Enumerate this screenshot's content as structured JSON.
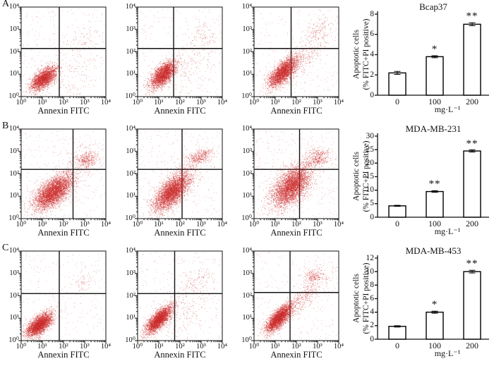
{
  "figure": {
    "scatter_xlabel": "Annexin FITC",
    "dose_unit": "mg·L⁻¹",
    "bar_ylabel_line1": "Apoptotic cells",
    "bar_ylabel_line2": "(% FITC+PI positive)",
    "dot_color": "#cc2a2a",
    "axis_color": "#111111",
    "rows": [
      {
        "label": "A",
        "cell_line": "Bcap37"
      },
      {
        "label": "B",
        "cell_line": "MDA-MB-231"
      },
      {
        "label": "C",
        "cell_line": "MDA-MB-453"
      }
    ]
  },
  "chart_data": [
    {
      "type": "scatter",
      "panel": "A1",
      "xlabel": "Annexin FITC",
      "xlim": [
        1,
        10000
      ],
      "ylim": [
        1,
        10000
      ],
      "log": true,
      "ticks": [
        "10⁰",
        "10¹",
        "10²",
        "10³",
        "10⁴"
      ],
      "quadrant_x": 1.8,
      "quadrant_y": 2.15,
      "seed": 11,
      "noise": 260,
      "clusters": [
        [
          1.05,
          0.82,
          0.3,
          0.26,
          0.6,
          2600
        ],
        [
          3.0,
          2.55,
          0.45,
          0.35,
          0.2,
          70
        ],
        [
          2.5,
          0.9,
          0.6,
          0.5,
          0.2,
          90
        ]
      ]
    },
    {
      "type": "scatter",
      "panel": "A2",
      "xlabel": "Annexin FITC",
      "xlim": [
        1,
        10000
      ],
      "ylim": [
        1,
        10000
      ],
      "log": true,
      "ticks": [
        "10⁰",
        "10¹",
        "10²",
        "10³",
        "10⁴"
      ],
      "quadrant_x": 1.7,
      "quadrant_y": 2.15,
      "seed": 22,
      "noise": 240,
      "clusters": [
        [
          1.2,
          1.0,
          0.3,
          0.3,
          0.65,
          2800
        ],
        [
          3.0,
          2.6,
          0.4,
          0.35,
          0.2,
          110
        ],
        [
          2.4,
          1.2,
          0.55,
          0.5,
          0.3,
          120
        ]
      ]
    },
    {
      "type": "scatter",
      "panel": "A3",
      "xlabel": "Annexin FITC",
      "xlim": [
        1,
        10000
      ],
      "ylim": [
        1,
        10000
      ],
      "log": true,
      "ticks": [
        "10⁰",
        "10¹",
        "10²",
        "10³",
        "10⁴"
      ],
      "quadrant_x": 1.75,
      "quadrant_y": 2.15,
      "seed": 33,
      "noise": 260,
      "clusters": [
        [
          1.35,
          1.1,
          0.33,
          0.33,
          0.7,
          3000
        ],
        [
          3.05,
          2.9,
          0.35,
          0.3,
          0.3,
          150
        ],
        [
          2.3,
          1.7,
          0.5,
          0.5,
          0.7,
          260
        ]
      ]
    },
    {
      "type": "scatter",
      "panel": "B1",
      "xlabel": "Annexin FITC",
      "xlim": [
        1,
        10000
      ],
      "ylim": [
        1,
        10000
      ],
      "log": true,
      "ticks": [
        "10⁰",
        "10¹",
        "10²",
        "10³",
        "10⁴"
      ],
      "quadrant_x": 2.45,
      "quadrant_y": 2.2,
      "seed": 44,
      "noise": 320,
      "clusters": [
        [
          1.5,
          1.2,
          0.45,
          0.38,
          0.6,
          4200
        ],
        [
          3.1,
          2.65,
          0.28,
          0.18,
          0.2,
          320
        ],
        [
          2.7,
          2.5,
          0.5,
          0.4,
          0.3,
          150
        ]
      ]
    },
    {
      "type": "scatter",
      "panel": "B2",
      "xlabel": "Annexin FITC",
      "xlim": [
        1,
        10000
      ],
      "ylim": [
        1,
        10000
      ],
      "log": true,
      "ticks": [
        "10⁰",
        "10¹",
        "10²",
        "10³",
        "10⁴"
      ],
      "quadrant_x": 2.1,
      "quadrant_y": 2.2,
      "seed": 55,
      "noise": 300,
      "clusters": [
        [
          1.6,
          1.2,
          0.42,
          0.4,
          0.65,
          4000
        ],
        [
          2.85,
          2.7,
          0.28,
          0.1,
          0.1,
          240
        ],
        [
          3.1,
          2.95,
          0.25,
          0.1,
          0.1,
          130
        ],
        [
          2.4,
          2.2,
          0.4,
          0.3,
          0.3,
          150
        ]
      ]
    },
    {
      "type": "scatter",
      "panel": "B3",
      "xlabel": "Annexin FITC",
      "xlim": [
        1,
        10000
      ],
      "ylim": [
        1,
        10000
      ],
      "log": true,
      "ticks": [
        "10⁰",
        "10¹",
        "10²",
        "10³",
        "10⁴"
      ],
      "quadrant_x": 2.15,
      "quadrant_y": 2.2,
      "seed": 66,
      "noise": 340,
      "clusters": [
        [
          1.75,
          1.45,
          0.45,
          0.45,
          0.55,
          4200
        ],
        [
          3.0,
          2.62,
          0.3,
          0.13,
          0.15,
          260
        ],
        [
          3.05,
          2.95,
          0.3,
          0.12,
          0.1,
          140
        ]
      ]
    },
    {
      "type": "scatter",
      "panel": "C1",
      "xlabel": "Annexin FITC",
      "xlim": [
        1,
        10000
      ],
      "ylim": [
        1,
        10000
      ],
      "log": true,
      "ticks": [
        "10⁰",
        "10¹",
        "10²",
        "10³",
        "10⁴"
      ],
      "quadrant_x": 1.8,
      "quadrant_y": 2.1,
      "seed": 77,
      "noise": 270,
      "clusters": [
        [
          0.85,
          0.72,
          0.3,
          0.26,
          0.6,
          3200
        ],
        [
          2.95,
          2.6,
          0.25,
          0.22,
          0.2,
          60
        ]
      ]
    },
    {
      "type": "scatter",
      "panel": "C2",
      "xlabel": "Annexin FITC",
      "xlim": [
        1,
        10000
      ],
      "ylim": [
        1,
        10000
      ],
      "log": true,
      "ticks": [
        "10⁰",
        "10¹",
        "10²",
        "10³",
        "10⁴"
      ],
      "quadrant_x": 1.75,
      "quadrant_y": 2.1,
      "seed": 88,
      "noise": 270,
      "clusters": [
        [
          1.0,
          0.95,
          0.3,
          0.3,
          0.75,
          3200
        ],
        [
          2.8,
          2.7,
          0.45,
          0.35,
          0.2,
          130
        ],
        [
          2.2,
          1.3,
          0.5,
          0.5,
          0.4,
          140
        ]
      ]
    },
    {
      "type": "scatter",
      "panel": "C3",
      "xlabel": "Annexin FITC",
      "xlim": [
        1,
        10000
      ],
      "ylim": [
        1,
        10000
      ],
      "log": true,
      "ticks": [
        "10⁰",
        "10¹",
        "10²",
        "10³",
        "10⁴"
      ],
      "quadrant_x": 1.7,
      "quadrant_y": 2.15,
      "seed": 99,
      "noise": 280,
      "clusters": [
        [
          1.15,
          1.0,
          0.3,
          0.3,
          0.75,
          3200
        ],
        [
          2.2,
          1.8,
          0.45,
          0.45,
          0.8,
          340
        ],
        [
          2.75,
          2.9,
          0.22,
          0.15,
          0.2,
          170
        ],
        [
          3.1,
          2.8,
          0.4,
          0.3,
          0.2,
          90
        ]
      ]
    },
    {
      "type": "bar",
      "title": "Bcap37",
      "categories": [
        "0",
        "100",
        "200"
      ],
      "values": [
        2.2,
        3.8,
        7.0
      ],
      "errors": [
        0.15,
        0.1,
        0.15
      ],
      "significance": [
        "",
        "*",
        "**"
      ],
      "ylim": [
        0,
        8
      ],
      "yticks": [
        0,
        2,
        4,
        6,
        8
      ],
      "xlabel_unit": "mg·L⁻¹",
      "ylabel": "Apoptotic cells (% FITC+PI positive)"
    },
    {
      "type": "bar",
      "title": "MDA-MB-231",
      "categories": [
        "0",
        "100",
        "200"
      ],
      "values": [
        4.2,
        9.5,
        24.5
      ],
      "errors": [
        0.2,
        0.3,
        0.4
      ],
      "significance": [
        "",
        "**",
        "**"
      ],
      "ylim": [
        0,
        30
      ],
      "yticks": [
        0,
        5,
        10,
        15,
        20,
        25,
        30
      ],
      "xlabel_unit": "mg·L⁻¹",
      "ylabel": "Apoptotic cells (% FITC+PI positive)"
    },
    {
      "type": "bar",
      "title": "MDA-MB-453",
      "categories": [
        "0",
        "100",
        "200"
      ],
      "values": [
        1.9,
        4.0,
        10.0
      ],
      "errors": [
        0.1,
        0.15,
        0.2
      ],
      "significance": [
        "",
        "*",
        "**"
      ],
      "ylim": [
        0,
        12
      ],
      "yticks": [
        0,
        2,
        4,
        6,
        8,
        10,
        12
      ],
      "xlabel_unit": "mg·L⁻¹",
      "ylabel": "Apoptotic cells (% FITC+PI positive)"
    }
  ]
}
